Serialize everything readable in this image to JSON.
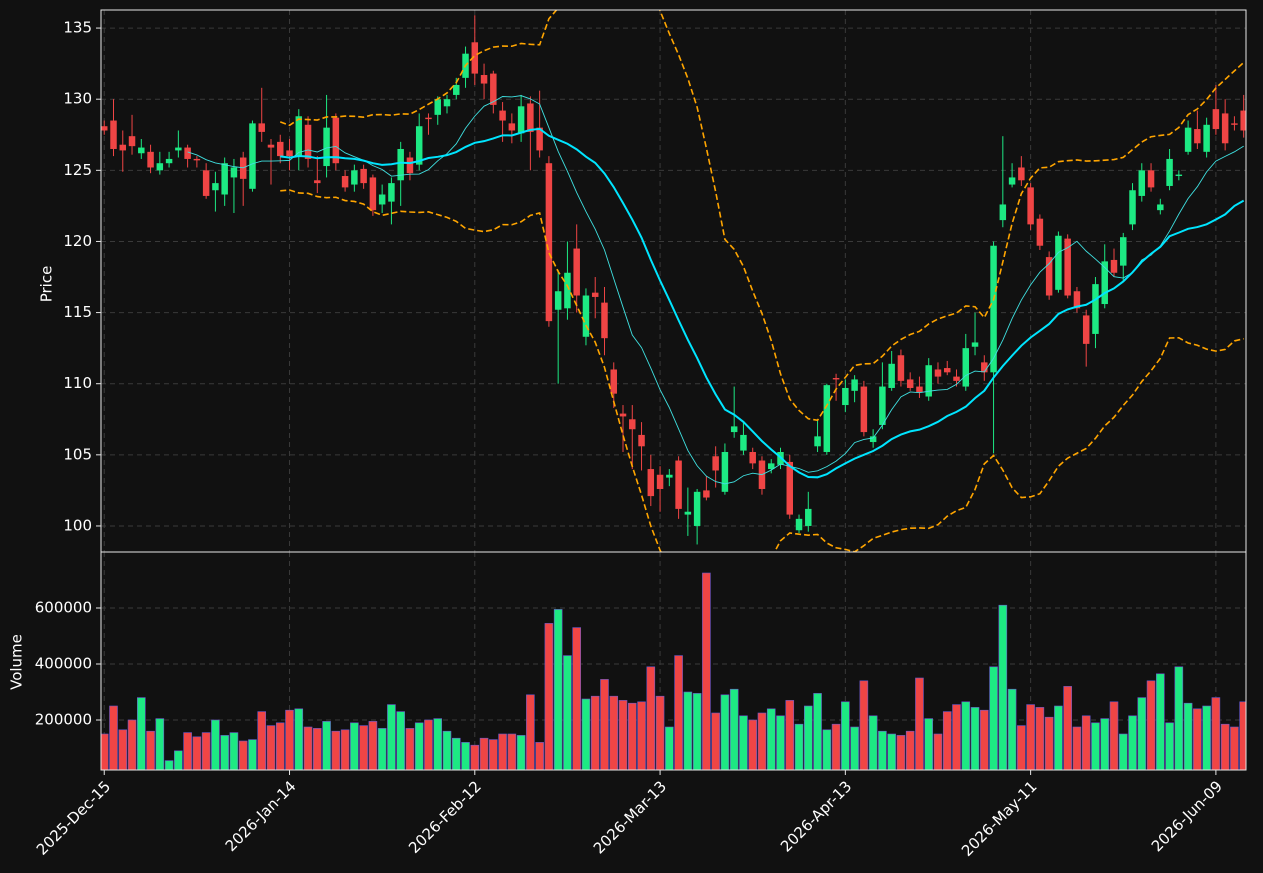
{
  "chart_data": {
    "type": "candlestick",
    "ylabel": "Price",
    "y2label": "Volume",
    "ylim": [
      98.17,
      136.27
    ],
    "yticks": [
      100,
      105,
      110,
      115,
      120,
      125,
      130,
      135
    ],
    "y2lim": [
      21400,
      800000
    ],
    "y2ticks": [
      200000,
      400000,
      600000
    ],
    "xlim": [
      -0.35,
      123.25
    ],
    "xticks": [
      {
        "value": 0,
        "label": "2025-Dec-15"
      },
      {
        "value": 20,
        "label": "2026-Jan-14"
      },
      {
        "value": 40,
        "label": "2026-Feb-12"
      },
      {
        "value": 60,
        "label": "2026-Mar-13"
      },
      {
        "value": 80,
        "label": "2026-Apr-13"
      },
      {
        "value": 100,
        "label": "2026-May-11"
      },
      {
        "value": 120,
        "label": "2026-Jun-09"
      }
    ],
    "grid": true,
    "up_color": "#1de983",
    "down_color": "#f04545",
    "mav": [
      {
        "window": 10,
        "color": "#3fe0e0",
        "width": 0.9
      },
      {
        "window": 20,
        "color": "#00e5ff",
        "width": 2
      }
    ],
    "bollinger": {
      "window": 20,
      "k": 2,
      "color": "#ffa500"
    },
    "open": [
      128.1,
      128.5,
      126.8,
      127.4,
      126.2,
      126.3,
      125.0,
      125.5,
      126.4,
      126.6,
      125.8,
      125.0,
      123.6,
      123.3,
      124.5,
      125.9,
      123.7,
      128.3,
      126.8,
      127.0,
      126.4,
      126.0,
      128.2,
      124.3,
      125.3,
      128.7,
      124.6,
      124.0,
      125.1,
      124.5,
      122.6,
      122.8,
      124.3,
      125.9,
      125.4,
      128.7,
      128.9,
      129.5,
      130.3,
      131.5,
      134.0,
      131.7,
      131.8,
      129.2,
      128.3,
      127.6,
      129.7,
      128.0,
      125.5,
      115.2,
      115.3,
      119.5,
      113.3,
      116.4,
      115.7,
      111.0,
      107.9,
      107.5,
      106.4,
      104.0,
      103.6,
      103.4,
      104.6,
      100.8,
      100.0,
      102.5,
      104.9,
      102.4,
      106.6,
      105.3,
      105.2,
      104.6,
      104.0,
      104.3,
      104.5,
      99.7,
      100.0,
      105.6,
      105.2,
      110.4,
      108.5,
      109.5,
      109.8,
      105.9,
      107.1,
      109.7,
      112.0,
      110.3,
      109.8,
      109.1,
      111.0,
      111.1,
      110.5,
      109.8,
      112.6,
      111.5,
      110.8,
      121.5,
      124.0,
      125.2,
      123.8,
      121.6,
      118.9,
      116.6,
      120.2,
      116.5,
      114.8,
      113.5,
      115.6,
      118.7,
      118.3,
      121.2,
      123.2,
      125.0,
      122.2,
      123.9,
      124.6,
      126.3,
      127.9,
      126.3,
      129.3,
      129.0,
      128.3,
      129.2
    ],
    "high": [
      128.5,
      130.0,
      127.8,
      128.9,
      127.2,
      126.8,
      126.3,
      126.3,
      127.8,
      126.8,
      126.0,
      125.5,
      124.9,
      125.9,
      125.8,
      126.3,
      128.5,
      130.8,
      127.2,
      127.5,
      127.2,
      129.3,
      128.8,
      126.0,
      130.3,
      129.0,
      125.0,
      125.4,
      125.4,
      124.7,
      124.0,
      124.5,
      127.0,
      126.3,
      129.0,
      129.0,
      130.2,
      130.3,
      131.5,
      133.7,
      135.9,
      132.5,
      132.0,
      129.8,
      129.0,
      130.3,
      130.2,
      130.6,
      126.0,
      118.0,
      120.0,
      121.2,
      116.7,
      117.5,
      116.8,
      111.5,
      108.5,
      108.5,
      107.3,
      105.0,
      104.2,
      104.0,
      104.9,
      102.7,
      102.6,
      103.5,
      105.6,
      105.8,
      109.8,
      107.3,
      105.5,
      104.9,
      104.7,
      105.5,
      105.0,
      100.8,
      102.4,
      107.5,
      110.0,
      110.7,
      110.3,
      110.6,
      110.2,
      106.8,
      111.5,
      112.3,
      112.4,
      110.8,
      110.5,
      111.8,
      111.5,
      111.6,
      111.0,
      113.5,
      115.0,
      112.0,
      120.0,
      127.4,
      125.5,
      126.0,
      124.1,
      121.9,
      119.3,
      120.7,
      120.5,
      116.8,
      115.2,
      117.5,
      119.8,
      119.5,
      120.6,
      124.1,
      125.5,
      125.5,
      123.0,
      126.5,
      125.0,
      128.5,
      129.2,
      128.7,
      131.0,
      130.0,
      128.8,
      130.3
    ],
    "low": [
      127.5,
      126.0,
      124.9,
      126.1,
      125.8,
      124.8,
      124.7,
      125.2,
      125.9,
      125.2,
      125.2,
      123.0,
      122.1,
      122.5,
      122.0,
      122.5,
      123.5,
      127.0,
      124.0,
      125.5,
      125.0,
      125.0,
      125.2,
      123.4,
      124.5,
      125.0,
      123.5,
      123.5,
      123.7,
      121.8,
      122.0,
      121.2,
      122.5,
      124.3,
      125.0,
      127.5,
      128.2,
      129.0,
      130.0,
      130.8,
      131.0,
      130.0,
      129.0,
      127.0,
      126.9,
      127.0,
      125.0,
      125.9,
      114.0,
      110.0,
      114.5,
      115.0,
      112.7,
      114.6,
      112.0,
      108.3,
      105.2,
      104.0,
      103.9,
      101.4,
      101.0,
      102.8,
      100.5,
      99.3,
      98.7,
      101.8,
      102.7,
      102.2,
      106.2,
      105.0,
      104.0,
      102.2,
      103.7,
      104.0,
      100.5,
      99.5,
      99.6,
      105.2,
      105.0,
      108.8,
      108.0,
      108.7,
      106.3,
      105.5,
      106.8,
      109.5,
      109.8,
      109.5,
      109.0,
      108.8,
      110.0,
      110.6,
      109.8,
      109.5,
      112.0,
      110.2,
      105.1,
      121.0,
      123.8,
      123.9,
      120.8,
      119.4,
      115.9,
      116.4,
      116.0,
      115.0,
      111.2,
      112.5,
      115.3,
      117.5,
      117.2,
      120.8,
      122.8,
      123.5,
      121.9,
      123.6,
      124.3,
      126.1,
      126.5,
      125.9,
      127.5,
      126.4,
      127.8,
      127.3
    ],
    "close": [
      127.8,
      126.5,
      126.4,
      126.7,
      126.6,
      125.2,
      125.5,
      125.8,
      126.6,
      125.8,
      125.7,
      123.2,
      124.1,
      125.5,
      125.2,
      124.4,
      128.3,
      127.7,
      126.6,
      126.0,
      126.0,
      128.8,
      125.8,
      124.1,
      128.0,
      125.5,
      123.8,
      125.0,
      124.1,
      122.2,
      123.3,
      124.1,
      126.5,
      124.8,
      128.1,
      128.6,
      130.0,
      130.0,
      131.0,
      133.2,
      131.8,
      131.1,
      129.6,
      128.5,
      127.8,
      129.5,
      127.7,
      126.4,
      114.4,
      116.5,
      117.8,
      116.2,
      116.2,
      116.1,
      113.2,
      109.3,
      107.7,
      106.8,
      105.6,
      102.1,
      102.6,
      103.6,
      101.2,
      101.0,
      102.4,
      102.0,
      103.9,
      105.2,
      107.0,
      106.4,
      104.4,
      102.6,
      104.4,
      105.2,
      100.8,
      100.5,
      101.2,
      106.3,
      109.9,
      110.3,
      109.7,
      110.3,
      106.6,
      106.3,
      109.8,
      111.4,
      110.2,
      109.7,
      109.4,
      111.3,
      110.5,
      110.8,
      110.2,
      112.5,
      112.9,
      110.8,
      119.7,
      122.6,
      124.5,
      124.3,
      121.2,
      119.7,
      116.2,
      120.4,
      116.2,
      115.3,
      112.8,
      117.0,
      118.6,
      117.8,
      120.3,
      123.6,
      125.0,
      123.8,
      122.6,
      125.8,
      124.7,
      128.0,
      126.9,
      128.2,
      127.9,
      126.9,
      128.2,
      127.8
    ],
    "volume": [
      150000,
      250000,
      165000,
      200000,
      280000,
      160000,
      205000,
      55000,
      90000,
      155000,
      140000,
      155000,
      200000,
      145000,
      155000,
      125000,
      130000,
      230000,
      180000,
      190000,
      235000,
      240000,
      175000,
      170000,
      195000,
      160000,
      165000,
      190000,
      180000,
      195000,
      170000,
      255000,
      230000,
      170000,
      190000,
      200000,
      205000,
      160000,
      135000,
      120000,
      110000,
      135000,
      130000,
      150000,
      150000,
      145000,
      290000,
      120000,
      545000,
      595000,
      430000,
      530000,
      275000,
      285000,
      345000,
      285000,
      270000,
      260000,
      265000,
      390000,
      285000,
      175000,
      430000,
      300000,
      295000,
      725000,
      225000,
      290000,
      310000,
      215000,
      200000,
      225000,
      240000,
      215000,
      270000,
      185000,
      250000,
      295000,
      165000,
      185000,
      265000,
      175000,
      340000,
      215000,
      160000,
      150000,
      145000,
      160000,
      350000,
      205000,
      150000,
      230000,
      255000,
      265000,
      245000,
      235000,
      390000,
      610000,
      310000,
      180000,
      255000,
      245000,
      210000,
      250000,
      320000,
      175000,
      215000,
      190000,
      205000,
      265000,
      150000,
      215000,
      280000,
      340000,
      365000,
      190000,
      390000,
      260000,
      240000,
      250000,
      280000,
      185000,
      175000,
      265000
    ]
  }
}
